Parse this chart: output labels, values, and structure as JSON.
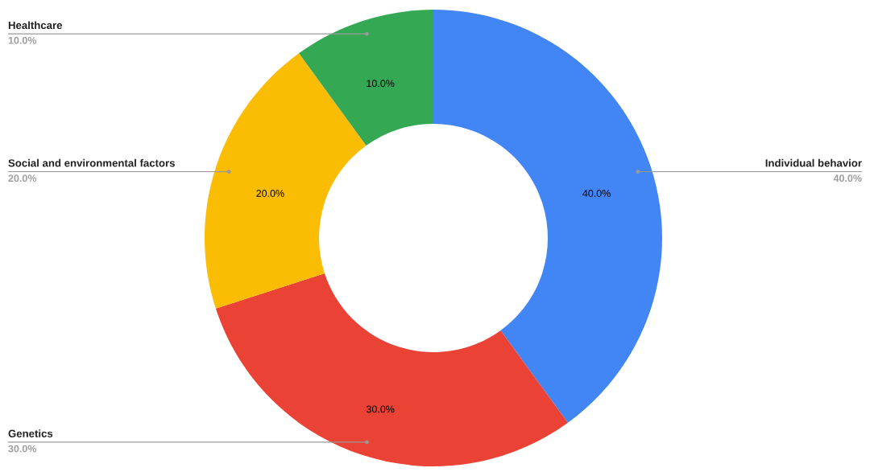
{
  "chart_data": {
    "type": "donut",
    "categories": [
      "Individual behavior",
      "Genetics",
      "Social and environmental factors",
      "Healthcare"
    ],
    "values": [
      40,
      30,
      20,
      10
    ],
    "colors": [
      "#4285f4",
      "#ea4335",
      "#fbbc04",
      "#34a853"
    ],
    "value_labels": [
      "40.0%",
      "30.0%",
      "20.0%",
      "10.0%"
    ]
  }
}
